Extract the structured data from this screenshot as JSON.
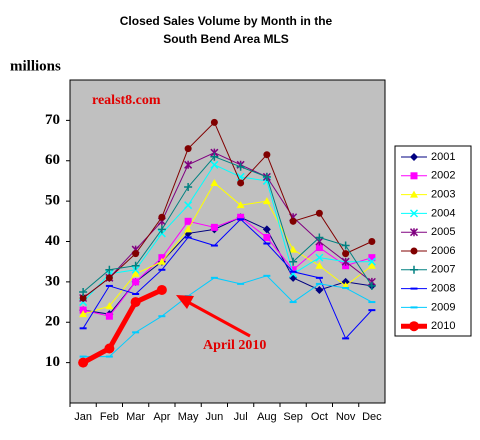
{
  "chart_data": {
    "type": "line",
    "title": "Closed Sales Volume by Month in the",
    "subtitle": "South Bend Area MLS",
    "y_label": "millions",
    "annotations": [
      "realst8.com",
      "April 2010"
    ],
    "categories": [
      "Jan",
      "Feb",
      "Mar",
      "Apr",
      "May",
      "Jun",
      "Jul",
      "Aug",
      "Sep",
      "Oct",
      "Nov",
      "Dec"
    ],
    "ylim": [
      0,
      80
    ],
    "yticks": [
      10,
      20,
      30,
      40,
      50,
      60,
      70
    ],
    "grid": false,
    "legend": "right",
    "series": [
      {
        "name": "2001",
        "color": "#000080",
        "marker": "diamond",
        "values": [
          23,
          22,
          30,
          35,
          42,
          43,
          46,
          43,
          31,
          28,
          30,
          29
        ]
      },
      {
        "name": "2002",
        "color": "#ff00ff",
        "marker": "square",
        "values": [
          23,
          21.5,
          30,
          36,
          45,
          43.5,
          46,
          41,
          33,
          38.5,
          34,
          36
        ]
      },
      {
        "name": "2003",
        "color": "#ffff00",
        "marker": "triangle",
        "values": [
          22,
          24,
          32,
          35,
          43,
          54.5,
          49,
          50,
          38,
          34,
          29,
          34
        ]
      },
      {
        "name": "2004",
        "color": "#00ffff",
        "marker": "x",
        "values": [
          25,
          32,
          33,
          42,
          49,
          59,
          56,
          55,
          32,
          36,
          35,
          35
        ]
      },
      {
        "name": "2005",
        "color": "#800080",
        "marker": "star",
        "values": [
          26,
          31,
          38,
          45,
          59,
          62,
          59,
          56,
          46,
          40,
          35,
          30
        ]
      },
      {
        "name": "2006",
        "color": "#800000",
        "marker": "circle",
        "values": [
          26,
          31,
          37,
          46,
          63,
          69.5,
          54.5,
          61.5,
          45,
          47,
          37,
          40
        ]
      },
      {
        "name": "2007",
        "color": "#008080",
        "marker": "plus",
        "values": [
          27.5,
          33,
          34,
          43,
          53.5,
          61,
          58.5,
          56,
          35,
          41,
          39,
          29
        ]
      },
      {
        "name": "2008",
        "color": "#0000ff",
        "marker": "dash",
        "values": [
          18.5,
          29,
          27,
          33,
          41,
          39,
          45.5,
          39.5,
          32.5,
          31,
          16,
          23
        ]
      },
      {
        "name": "2009",
        "color": "#00ccff",
        "marker": "dash",
        "values": [
          11.5,
          11.5,
          17.5,
          21.5,
          26.5,
          31,
          29.5,
          31.5,
          25,
          29.5,
          28.5,
          25
        ]
      },
      {
        "name": "2010",
        "color": "#ff0000",
        "marker": "bigcircle",
        "values": [
          10,
          13.5,
          25,
          28,
          null,
          null,
          null,
          null,
          null,
          null,
          null,
          null
        ]
      }
    ]
  }
}
